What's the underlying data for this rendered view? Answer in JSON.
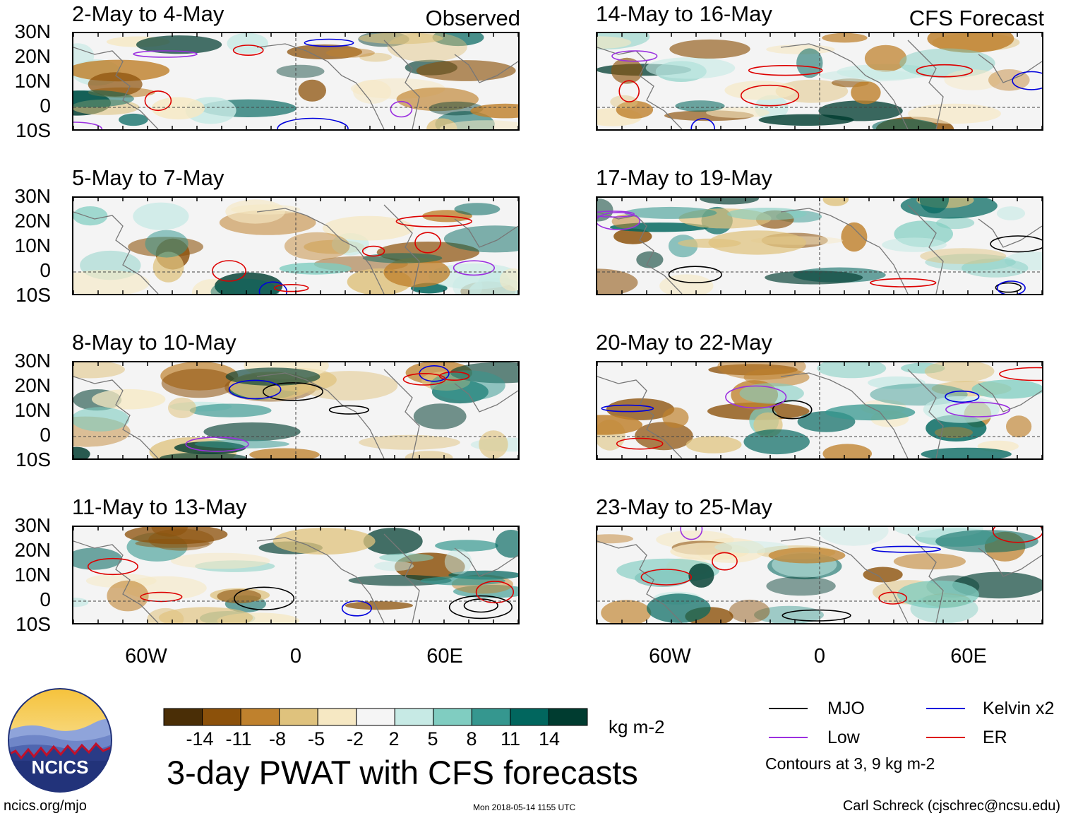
{
  "columns": [
    {
      "tag": "Observed",
      "panels": [
        "2-May to 4-May",
        "5-May to 7-May",
        "8-May to 10-May",
        "11-May to 13-May"
      ]
    },
    {
      "tag": "CFS Forecast",
      "panels": [
        "14-May to 16-May",
        "17-May to 19-May",
        "20-May to 22-May",
        "23-May to 25-May"
      ]
    }
  ],
  "lat_labels": [
    "30N",
    "20N",
    "10N",
    "0",
    "10S"
  ],
  "lon_labels": [
    "60W",
    "0",
    "60E"
  ],
  "colorbar": {
    "labels": [
      "-14",
      "-11",
      "-8",
      "-5",
      "-2",
      "2",
      "5",
      "8",
      "11",
      "14"
    ],
    "colors": [
      "#4a2e06",
      "#8c510a",
      "#bf812d",
      "#dfc27d",
      "#f6e8c3",
      "#f5f5f5",
      "#c7eae5",
      "#80cdc1",
      "#35978f",
      "#01665e",
      "#003c30"
    ],
    "units": "kg m-2"
  },
  "main_title": "3-day PWAT with CFS forecasts",
  "legend": {
    "items": [
      {
        "label": "MJO",
        "color": "#000000"
      },
      {
        "label": "Kelvin x2",
        "color": "#0000dd"
      },
      {
        "label": "Low",
        "color": "#9b30e0"
      },
      {
        "label": "ER",
        "color": "#dd0000"
      }
    ],
    "note": "Contours at 3, 9 kg m-2"
  },
  "logo_text": "NCICS",
  "footer": {
    "left": "ncics.org/mjo",
    "middle": "Mon 2018-05-14 1155 UTC",
    "right": "Carl Schreck (cjschrec@ncsu.edu)"
  }
}
